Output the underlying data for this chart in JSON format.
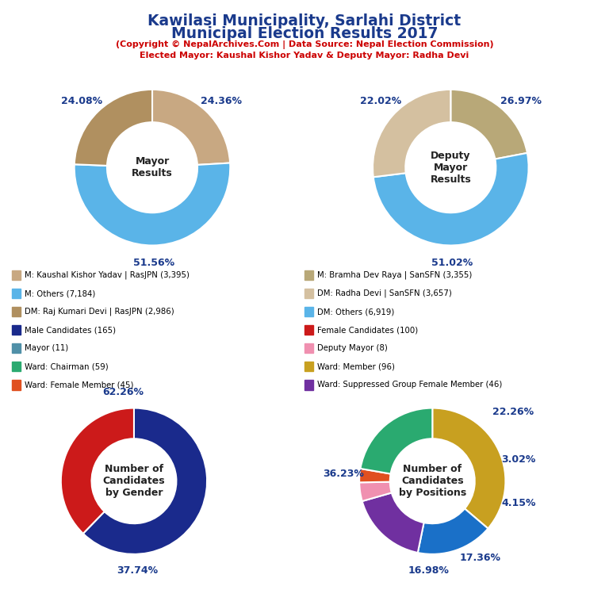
{
  "title_line1": "Kawilasi Municipality, Sarlahi District",
  "title_line2": "Municipal Election Results 2017",
  "subtitle1": "(Copyright © NepalArchives.Com | Data Source: Nepal Election Commission)",
  "subtitle2": "Elected Mayor: Kaushal Kishor Yadav & Deputy Mayor: Radha Devi",
  "title_color": "#1a3a8c",
  "subtitle_color": "#cc0000",
  "mayor_slices": [
    24.08,
    51.56,
    24.36
  ],
  "mayor_colors": [
    "#c8a882",
    "#5ab4e8",
    "#b09060"
  ],
  "mayor_labels": [
    "24.08%",
    "51.56%",
    "24.36%"
  ],
  "mayor_center_text": "Mayor\nResults",
  "deputy_slices": [
    22.02,
    51.02,
    26.97
  ],
  "deputy_colors": [
    "#b8a878",
    "#5ab4e8",
    "#d4c0a0"
  ],
  "deputy_labels": [
    "22.02%",
    "51.02%",
    "26.97%"
  ],
  "deputy_center_text": "Deputy\nMayor\nResults",
  "gender_slices": [
    62.26,
    37.74
  ],
  "gender_colors": [
    "#1a2a8c",
    "#cc1a1a"
  ],
  "gender_labels": [
    "62.26%",
    "37.74%"
  ],
  "gender_center_text": "Number of\nCandidates\nby Gender",
  "positions_slices": [
    36.23,
    16.98,
    17.36,
    4.15,
    3.02,
    22.26
  ],
  "positions_colors": [
    "#c8a020",
    "#1a70c8",
    "#7030a0",
    "#f090b0",
    "#e05020",
    "#2aaa70"
  ],
  "positions_labels": [
    "36.23%",
    "16.98%",
    "17.36%",
    "4.15%",
    "3.02%",
    "22.26%"
  ],
  "positions_center_text": "Number of\nCandidates\nby Positions",
  "legend_items_left": [
    {
      "label": "M: Kaushal Kishor Yadav | RasJPN (3,395)",
      "color": "#c8a882"
    },
    {
      "label": "M: Others (7,184)",
      "color": "#5ab4e8"
    },
    {
      "label": "DM: Raj Kumari Devi | RasJPN (2,986)",
      "color": "#b09060"
    },
    {
      "label": "Male Candidates (165)",
      "color": "#1a2a8c"
    },
    {
      "label": "Mayor (11)",
      "color": "#5090a8"
    },
    {
      "label": "Ward: Chairman (59)",
      "color": "#2aaa70"
    },
    {
      "label": "Ward: Female Member (45)",
      "color": "#e05020"
    }
  ],
  "legend_items_right": [
    {
      "label": "M: Bramha Dev Raya | SanSFN (3,355)",
      "color": "#b8a878"
    },
    {
      "label": "DM: Radha Devi | SanSFN (3,657)",
      "color": "#d4c0a0"
    },
    {
      "label": "DM: Others (6,919)",
      "color": "#5ab4e8"
    },
    {
      "label": "Female Candidates (100)",
      "color": "#cc1a1a"
    },
    {
      "label": "Deputy Mayor (8)",
      "color": "#f090b0"
    },
    {
      "label": "Ward: Member (96)",
      "color": "#c8a020"
    },
    {
      "label": "Ward: Suppressed Group Female Member (46)",
      "color": "#7030a0"
    }
  ],
  "donut_width": 0.42
}
